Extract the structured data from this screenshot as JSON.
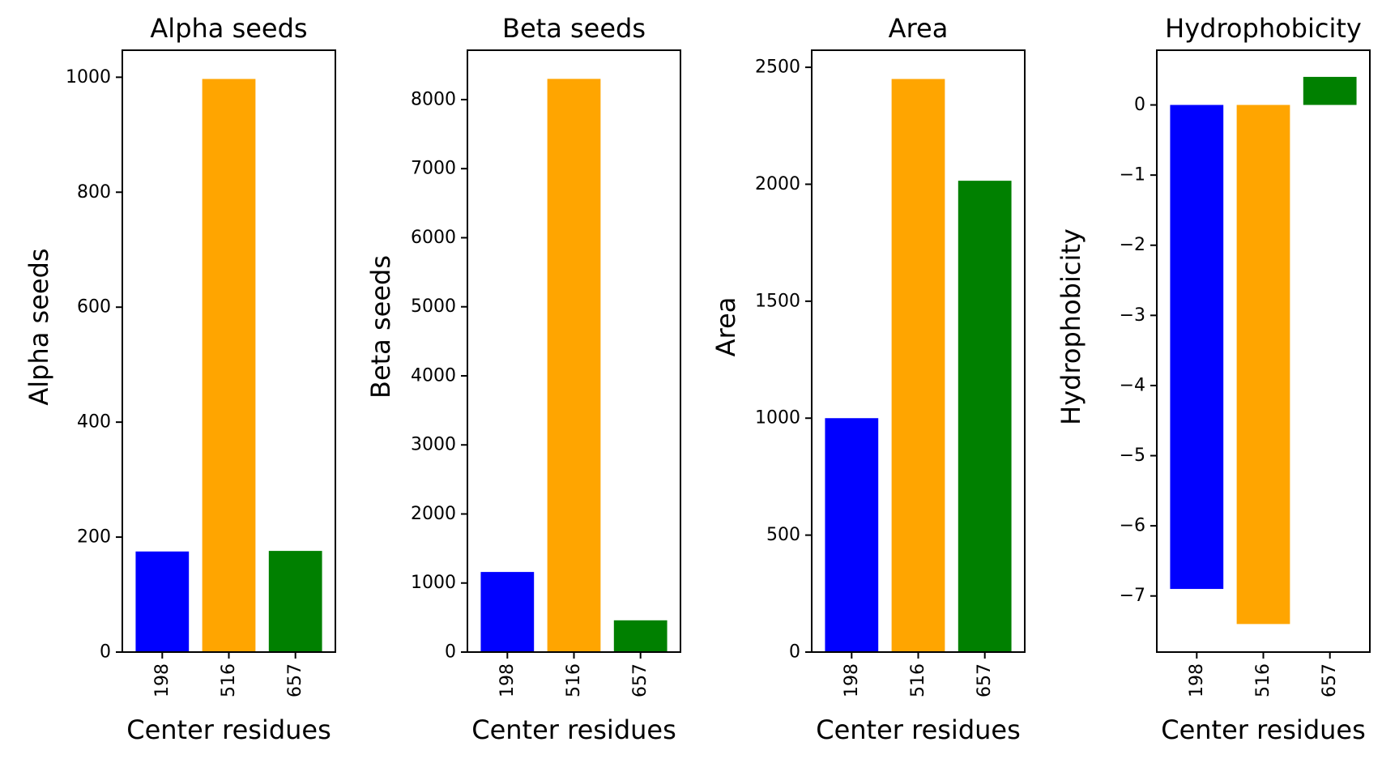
{
  "chart_data": [
    {
      "type": "bar",
      "title": "Alpha seeds",
      "xlabel": "Center residues",
      "ylabel": "Alpha seeds",
      "categories": [
        "198",
        "516",
        "657"
      ],
      "values": [
        175,
        997,
        176
      ],
      "colors": [
        "#0000ff",
        "#ffa500",
        "#008000"
      ],
      "ylim": [
        0,
        1047
      ],
      "yticks": [
        0,
        200,
        400,
        600,
        800,
        1000
      ],
      "ytick_labels": [
        "0",
        "200",
        "400",
        "600",
        "800",
        "1000"
      ],
      "grid": false,
      "legend": "none"
    },
    {
      "type": "bar",
      "title": "Beta seeds",
      "xlabel": "Center residues",
      "ylabel": "Beta seeds",
      "categories": [
        "198",
        "516",
        "657"
      ],
      "values": [
        1160,
        8300,
        460
      ],
      "colors": [
        "#0000ff",
        "#ffa500",
        "#008000"
      ],
      "ylim": [
        0,
        8715
      ],
      "yticks": [
        0,
        1000,
        2000,
        3000,
        4000,
        5000,
        6000,
        7000,
        8000
      ],
      "ytick_labels": [
        "0",
        "1000",
        "2000",
        "3000",
        "4000",
        "5000",
        "6000",
        "7000",
        "8000"
      ],
      "grid": false,
      "legend": "none"
    },
    {
      "type": "bar",
      "title": "Area",
      "xlabel": "Center residues",
      "ylabel": "Area",
      "categories": [
        "198",
        "516",
        "657"
      ],
      "values": [
        1000,
        2450,
        2015
      ],
      "colors": [
        "#0000ff",
        "#ffa500",
        "#008000"
      ],
      "ylim": [
        0,
        2573
      ],
      "yticks": [
        0,
        500,
        1000,
        1500,
        2000,
        2500
      ],
      "ytick_labels": [
        "0",
        "500",
        "1000",
        "1500",
        "2000",
        "2500"
      ],
      "grid": false,
      "legend": "none"
    },
    {
      "type": "bar",
      "title": "Hydrophobicity",
      "xlabel": "Center residues",
      "ylabel": "Hydrophobicity",
      "categories": [
        "198",
        "516",
        "657"
      ],
      "values": [
        -6.9,
        -7.4,
        0.4
      ],
      "colors": [
        "#0000ff",
        "#ffa500",
        "#008000"
      ],
      "ylim": [
        -7.8,
        0.78
      ],
      "yticks": [
        0,
        -1,
        -2,
        -3,
        -4,
        -5,
        -6,
        -7
      ],
      "ytick_labels": [
        "0",
        "−1",
        "−2",
        "−3",
        "−4",
        "−5",
        "−6",
        "−7"
      ],
      "grid": false,
      "legend": "none"
    }
  ]
}
